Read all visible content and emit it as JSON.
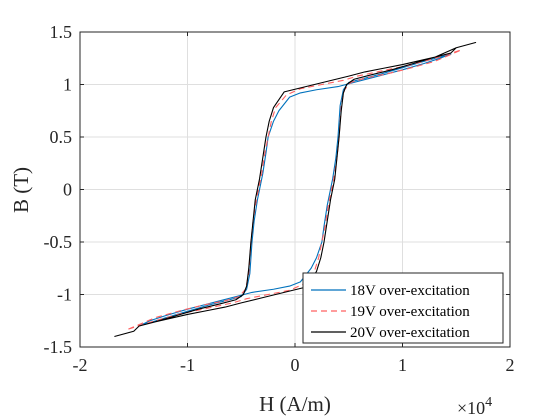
{
  "chart_data": {
    "type": "line",
    "title": "",
    "xlabel": "H (A/m)",
    "ylabel": "B (T)",
    "x_exponent_label": {
      "base": "×10",
      "power": "4"
    },
    "xlim": [
      -2,
      2
    ],
    "ylim": [
      -1.5,
      1.5
    ],
    "x_ticks": [
      -2,
      -1,
      0,
      1,
      2
    ],
    "x_tick_labels": [
      "-2",
      "-1",
      "0",
      "1",
      "2"
    ],
    "y_ticks": [
      -1.5,
      -1,
      -0.5,
      0,
      0.5,
      1,
      1.5
    ],
    "y_tick_labels": [
      "-1.5",
      "-1",
      "-0.5",
      "0",
      "0.5",
      "1",
      "1.5"
    ],
    "grid": true,
    "legend_position": "bottom-right",
    "series": [
      {
        "name": "18V over-excitation",
        "color": "#0072BD",
        "dash": "solid",
        "x": [
          -1.45,
          -1.2,
          -1.0,
          -0.8,
          -0.65,
          -0.5,
          -0.45,
          -0.42,
          -0.4,
          -0.38,
          -0.35,
          -0.3,
          -0.27,
          -0.25,
          -0.2,
          -0.15,
          -0.05,
          0.05,
          0.2,
          0.4,
          0.55,
          0.7,
          0.85,
          1.0,
          1.2,
          1.35,
          1.45,
          1.2,
          1.0,
          0.8,
          0.65,
          0.5,
          0.45,
          0.42,
          0.4,
          0.38,
          0.35,
          0.3,
          0.27,
          0.25,
          0.2,
          0.15,
          0.05,
          -0.05,
          -0.2,
          -0.4,
          -0.55,
          -0.7,
          -0.85,
          -1.0,
          -1.2,
          -1.35,
          -1.45
        ],
        "y": [
          -1.3,
          -1.22,
          -1.16,
          -1.1,
          -1.06,
          -1.02,
          -0.95,
          -0.8,
          -0.5,
          -0.3,
          -0.1,
          0.15,
          0.35,
          0.5,
          0.65,
          0.75,
          0.88,
          0.92,
          0.95,
          0.98,
          1.02,
          1.06,
          1.1,
          1.14,
          1.2,
          1.25,
          1.29,
          1.22,
          1.16,
          1.1,
          1.06,
          1.02,
          0.95,
          0.8,
          0.5,
          0.3,
          0.1,
          -0.15,
          -0.35,
          -0.5,
          -0.65,
          -0.75,
          -0.88,
          -0.92,
          -0.95,
          -0.98,
          -1.02,
          -1.06,
          -1.1,
          -1.14,
          -1.2,
          -1.25,
          -1.3
        ]
      },
      {
        "name": "19V over-excitation",
        "color": "#FF6060",
        "dash": "dashed",
        "x": [
          -1.55,
          -1.3,
          -1.05,
          -0.85,
          -0.65,
          -0.52,
          -0.46,
          -0.43,
          -0.41,
          -0.39,
          -0.36,
          -0.31,
          -0.28,
          -0.25,
          -0.22,
          -0.18,
          -0.08,
          0.05,
          0.25,
          0.45,
          0.58,
          0.72,
          0.9,
          1.05,
          1.3,
          1.55,
          1.3,
          1.05,
          0.85,
          0.65,
          0.52,
          0.46,
          0.43,
          0.41,
          0.39,
          0.36,
          0.31,
          0.28,
          0.25,
          0.22,
          0.18,
          0.08,
          -0.05,
          -0.25,
          -0.45,
          -0.58,
          -0.72,
          -0.9,
          -1.05,
          -1.3,
          -1.55
        ],
        "y": [
          -1.33,
          -1.22,
          -1.15,
          -1.1,
          -1.06,
          -1.02,
          -0.95,
          -0.8,
          -0.5,
          -0.3,
          -0.1,
          0.15,
          0.35,
          0.5,
          0.65,
          0.78,
          0.9,
          0.96,
          1.0,
          1.04,
          1.08,
          1.11,
          1.15,
          1.18,
          1.25,
          1.33,
          1.22,
          1.15,
          1.1,
          1.06,
          1.02,
          0.95,
          0.8,
          0.5,
          0.3,
          0.1,
          -0.15,
          -0.35,
          -0.5,
          -0.65,
          -0.78,
          -0.9,
          -0.96,
          -1.0,
          -1.04,
          -1.08,
          -1.11,
          -1.15,
          -1.18,
          -1.25,
          -1.33
        ]
      },
      {
        "name": "20V over-excitation",
        "color": "#000000",
        "dash": "solid",
        "x": [
          -1.68,
          -1.5,
          -1.45,
          -1.3,
          -1.1,
          -0.9,
          -0.7,
          -0.55,
          -0.48,
          -0.45,
          -0.43,
          -0.41,
          -0.39,
          -0.37,
          -0.33,
          -0.3,
          -0.27,
          -0.24,
          -0.2,
          -0.1,
          0.1,
          0.3,
          0.5,
          0.65,
          0.8,
          1.0,
          1.3,
          1.45,
          1.5,
          1.68,
          1.5,
          1.3,
          1.1,
          0.9,
          0.7,
          0.55,
          0.48,
          0.45,
          0.43,
          0.41,
          0.39,
          0.37,
          0.33,
          0.3,
          0.27,
          0.24,
          0.2,
          0.1,
          -0.1,
          -0.3,
          -0.5,
          -0.65,
          -0.8,
          -1.0,
          -1.3,
          -1.45,
          -1.5,
          -1.68
        ],
        "y": [
          -1.4,
          -1.35,
          -1.3,
          -1.26,
          -1.2,
          -1.14,
          -1.09,
          -1.05,
          -1.0,
          -0.92,
          -0.75,
          -0.5,
          -0.3,
          -0.1,
          0.1,
          0.3,
          0.5,
          0.65,
          0.78,
          0.93,
          0.98,
          1.03,
          1.08,
          1.12,
          1.15,
          1.19,
          1.26,
          1.3,
          1.35,
          1.4,
          1.35,
          1.26,
          1.2,
          1.14,
          1.09,
          1.05,
          1.0,
          0.92,
          0.75,
          0.5,
          0.3,
          0.1,
          -0.1,
          -0.3,
          -0.5,
          -0.65,
          -0.78,
          -0.93,
          -0.98,
          -1.03,
          -1.08,
          -1.12,
          -1.15,
          -1.19,
          -1.26,
          -1.3,
          -1.35,
          -1.4
        ]
      }
    ]
  }
}
